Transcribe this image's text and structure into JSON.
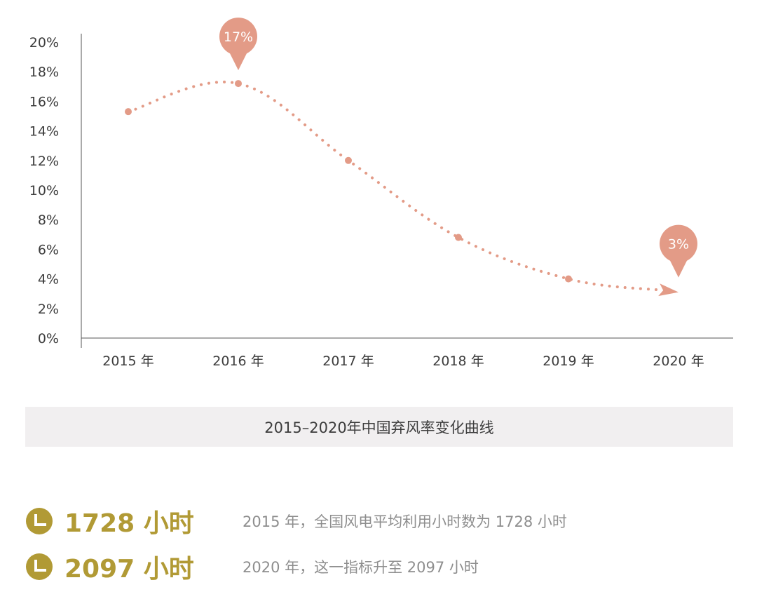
{
  "chart_data": {
    "type": "line",
    "categories": [
      "2015 年",
      "2016 年",
      "2017 年",
      "2018 年",
      "2019 年",
      "2020 年"
    ],
    "values": [
      15.3,
      17.2,
      12,
      6.8,
      4,
      3.1
    ],
    "y_ticks": [
      "0%",
      "2%",
      "4%",
      "6%",
      "8%",
      "10%",
      "12%",
      "14%",
      "16%",
      "18%",
      "20%"
    ],
    "ylim": [
      0,
      20
    ],
    "callouts": [
      {
        "category_index": 1,
        "label": "17%"
      },
      {
        "category_index": 5,
        "label": "3%"
      }
    ],
    "line_style": "dotted",
    "end_marker": "arrow",
    "grid": false,
    "color": "#e39b87"
  },
  "caption": "2015–2020年中国弃风率变化曲线",
  "stats": [
    {
      "value": "1728 小时",
      "description": "2015 年，全国风电平均利用小时数为 1728 小时",
      "icon": "pie-chart-icon"
    },
    {
      "value": "2097 小时",
      "description": "2020 年，这一指标升至 2097 小时",
      "icon": "pie-chart-icon"
    }
  ],
  "colors": {
    "accent": "#e39b87",
    "stat_value": "#b19a35",
    "caption_bg": "#f1eff0"
  }
}
